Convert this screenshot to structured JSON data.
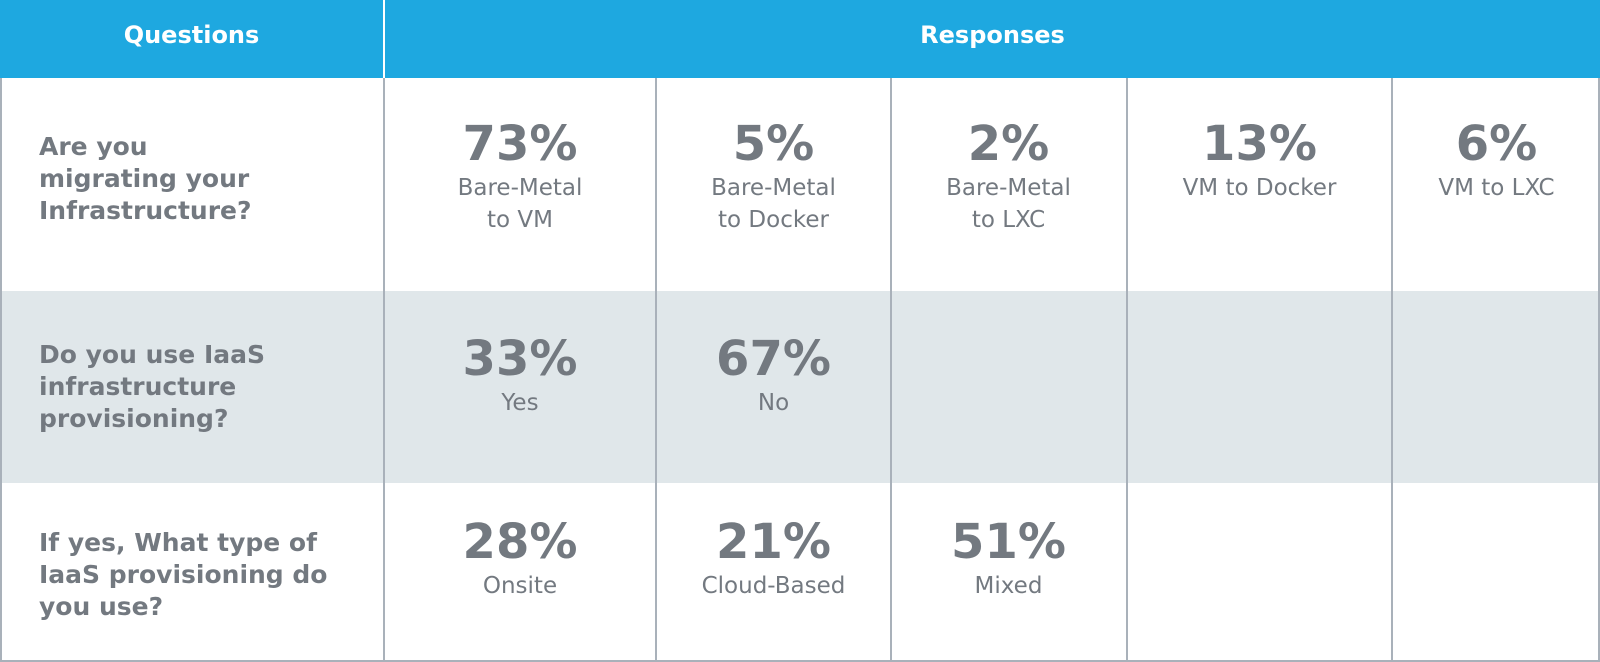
{
  "chart_data": {
    "type": "table",
    "columns": [
      "Questions",
      "Responses"
    ],
    "rows": [
      {
        "question": "Are you\nmigrating your\nInfrastructure?",
        "responses": [
          {
            "percent": "73%",
            "label": "Bare-Metal\nto VM"
          },
          {
            "percent": "5%",
            "label": "Bare-Metal\nto Docker"
          },
          {
            "percent": "2%",
            "label": "Bare-Metal\nto LXC"
          },
          {
            "percent": "13%",
            "label": "VM to Docker"
          },
          {
            "percent": "6%",
            "label": "VM to LXC"
          }
        ]
      },
      {
        "question": "Do you use IaaS\ninfrastructure\nprovisioning?",
        "responses": [
          {
            "percent": "33%",
            "label": "Yes"
          },
          {
            "percent": "67%",
            "label": "No"
          }
        ]
      },
      {
        "question": "If yes, What type of\nIaaS provisioning do\nyou use?",
        "responses": [
          {
            "percent": "28%",
            "label": "Onsite"
          },
          {
            "percent": "21%",
            "label": "Cloud-Based"
          },
          {
            "percent": "51%",
            "label": "Mixed"
          }
        ]
      }
    ]
  },
  "colors": {
    "header_bg": "#1ea8e0",
    "header_text": "#ffffff",
    "body_text": "#737980",
    "stripe_bg": "#e0e7ea",
    "grid": "#a9b1ba"
  }
}
